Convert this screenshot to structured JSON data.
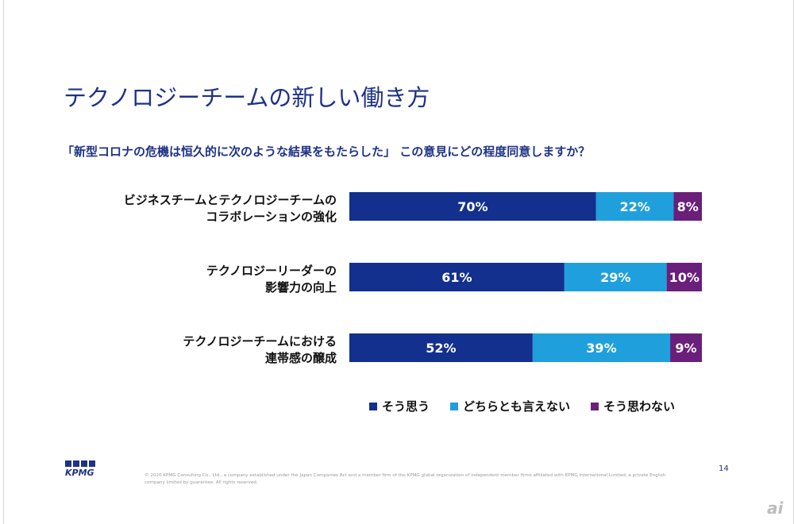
{
  "page": {
    "title": "テクノロジーチームの新しい働き方",
    "question": "「新型コロナの危機は恒久的に次のような結果をもたらした」 この意見にどの程度同意しますか？",
    "page_number": "14",
    "footer_note": "© 2020 KPMG Consulting Co., Ltd., a company established under the Japan Companies Act and a member firm of the KPMG global organization of independent member firms affiliated with KPMG International Limited, a private English company limited by guarantee. All rights reserved.",
    "logo_text": "KPMG",
    "watermark": "ai"
  },
  "colors": {
    "title": "#1e3287",
    "series": [
      "#13308f",
      "#1fa0dc",
      "#6a1f7a"
    ]
  },
  "chart_data": {
    "type": "bar",
    "orientation": "horizontal",
    "stacked": true,
    "categories": [
      [
        "ビジネスチームとテクノロジーチームの",
        "コラボレーションの強化"
      ],
      [
        "テクノロジーリーダーの",
        "影響力の向上"
      ],
      [
        "テクノロジーチームにおける",
        "連帯感の醸成"
      ]
    ],
    "series": [
      {
        "name": "そう思う",
        "values": [
          70,
          61,
          52
        ]
      },
      {
        "name": "どちらとも言えない",
        "values": [
          22,
          29,
          39
        ]
      },
      {
        "name": "そう思わない",
        "values": [
          8,
          10,
          9
        ]
      }
    ],
    "value_labels": [
      [
        "70%",
        "22%",
        "8%"
      ],
      [
        "61%",
        "29%",
        "10%"
      ],
      [
        "52%",
        "39%",
        "9%"
      ]
    ],
    "xlim": [
      0,
      100
    ],
    "legend_position": "bottom"
  }
}
